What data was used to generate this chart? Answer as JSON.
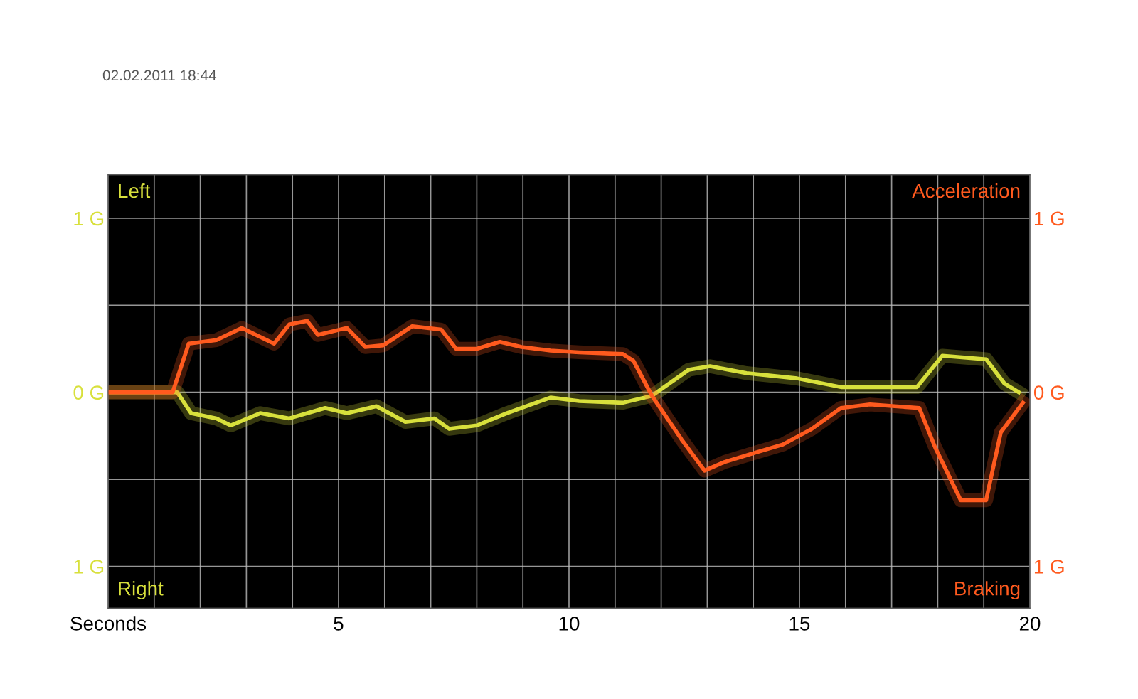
{
  "chart_data": {
    "type": "line",
    "subtitle": "02.02.2011 18:44",
    "xlabel": null,
    "annotations": [
      "Left",
      "Right",
      "Acceleration",
      "Braking"
    ],
    "xlim": [
      0,
      20
    ],
    "ylim": [
      -1.24,
      1.25
    ],
    "y2lim": [
      -1.24,
      1.25
    ],
    "xticks": [
      {
        "value": 0,
        "label": "Seconds"
      },
      {
        "value": 1,
        "label": null
      },
      {
        "value": 2,
        "label": null
      },
      {
        "value": 3,
        "label": null
      },
      {
        "value": 4,
        "label": null
      },
      5,
      {
        "value": 6,
        "label": null
      },
      {
        "value": 7,
        "label": null
      },
      {
        "value": 8,
        "label": null
      },
      {
        "value": 9,
        "label": null
      },
      10,
      {
        "value": 11,
        "label": null
      },
      {
        "value": 12,
        "label": null
      },
      {
        "value": 13,
        "label": null
      },
      {
        "value": 14,
        "label": null
      },
      15,
      {
        "value": 16,
        "label": null
      },
      {
        "value": 17,
        "label": null
      },
      {
        "value": 18,
        "label": null
      },
      {
        "value": 19,
        "label": null
      },
      20
    ],
    "yticks": [
      {
        "value": -1,
        "label": "1 G"
      },
      {
        "value": -0.5,
        "label": null
      },
      {
        "value": 0,
        "label": "0 G"
      },
      {
        "value": 0.5,
        "label": null
      },
      {
        "value": 1,
        "label": "1 G"
      }
    ],
    "y2ticks": [
      {
        "value": -1,
        "label": "1 G"
      },
      {
        "value": -0.5,
        "label": null
      },
      {
        "value": 0,
        "label": "0 G"
      },
      {
        "value": 0.5,
        "label": null
      },
      {
        "value": 1,
        "label": "1 G"
      }
    ],
    "grid": true,
    "marker": "none",
    "line_style": "solid",
    "series": [
      {
        "color": "#d8e03c",
        "axis": "y",
        "x": [
          0,
          1.5,
          1.8,
          2.35,
          2.66,
          3.3,
          3.93,
          4.71,
          5.18,
          5.82,
          6.45,
          7.08,
          7.4,
          8.0,
          8.65,
          9.6,
          10.22,
          11.17,
          11.8,
          12.6,
          13.06,
          13.85,
          14.95,
          15.9,
          17.55,
          18.1,
          19.05,
          19.45,
          19.76
        ],
        "values": [
          0,
          0,
          -0.12,
          -0.15,
          -0.19,
          -0.12,
          -0.15,
          -0.09,
          -0.12,
          -0.08,
          -0.17,
          -0.15,
          -0.21,
          -0.19,
          -0.12,
          -0.03,
          -0.05,
          -0.06,
          -0.02,
          0.13,
          0.15,
          0.11,
          0.08,
          0.03,
          0.03,
          0.21,
          0.19,
          0.05,
          0.0
        ]
      },
      {
        "color": "#ff5a1e",
        "axis": "y2",
        "x": [
          0,
          1.4,
          1.75,
          2.35,
          2.9,
          3.6,
          3.93,
          4.32,
          4.55,
          5.18,
          5.58,
          5.97,
          6.6,
          7.23,
          7.55,
          8.0,
          8.5,
          8.97,
          9.6,
          10.22,
          11.17,
          11.4,
          11.8,
          12.44,
          12.94,
          13.38,
          14.0,
          14.64,
          15.27,
          15.9,
          16.53,
          17.6,
          17.95,
          18.5,
          19.05,
          19.37,
          19.85
        ],
        "values": [
          0,
          0,
          0.28,
          0.3,
          0.37,
          0.28,
          0.39,
          0.41,
          0.33,
          0.37,
          0.26,
          0.27,
          0.38,
          0.36,
          0.25,
          0.25,
          0.29,
          0.26,
          0.24,
          0.23,
          0.22,
          0.18,
          -0.02,
          -0.27,
          -0.45,
          -0.4,
          -0.35,
          -0.3,
          -0.21,
          -0.09,
          -0.07,
          -0.09,
          -0.32,
          -0.62,
          -0.62,
          -0.23,
          -0.06
        ]
      }
    ]
  }
}
